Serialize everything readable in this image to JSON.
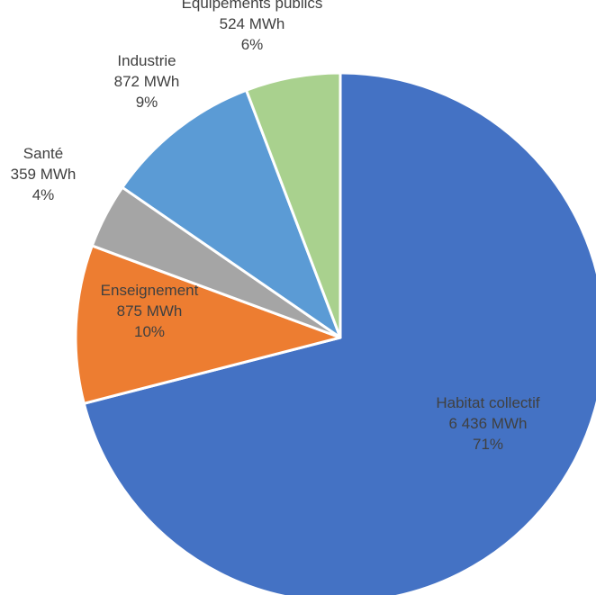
{
  "chart_data": {
    "type": "pie",
    "title": "",
    "unit": "MWh",
    "slices": [
      {
        "label": "Habitat collectif",
        "value_text": "6 436 MWh",
        "value": 6436,
        "percent_text": "71%",
        "percent": 71,
        "color": "#4472C4"
      },
      {
        "label": "Enseignement",
        "value_text": "875 MWh",
        "value": 875,
        "percent_text": "10%",
        "percent": 10,
        "color": "#ED7D31"
      },
      {
        "label": "Santé",
        "value_text": "359 MWh",
        "value": 359,
        "percent_text": "4%",
        "percent": 4,
        "color": "#A5A5A5"
      },
      {
        "label": "Industrie",
        "value_text": "872 MWh",
        "value": 872,
        "percent_text": "9%",
        "percent": 9,
        "color": "#5B9BD5"
      },
      {
        "label": "Equipements publics",
        "value_text": "524 MWh",
        "value": 524,
        "percent_text": "6%",
        "percent": 6,
        "color": "#A9D18E"
      }
    ],
    "start_direction": "top",
    "direction": "clockwise",
    "legend": "none"
  }
}
